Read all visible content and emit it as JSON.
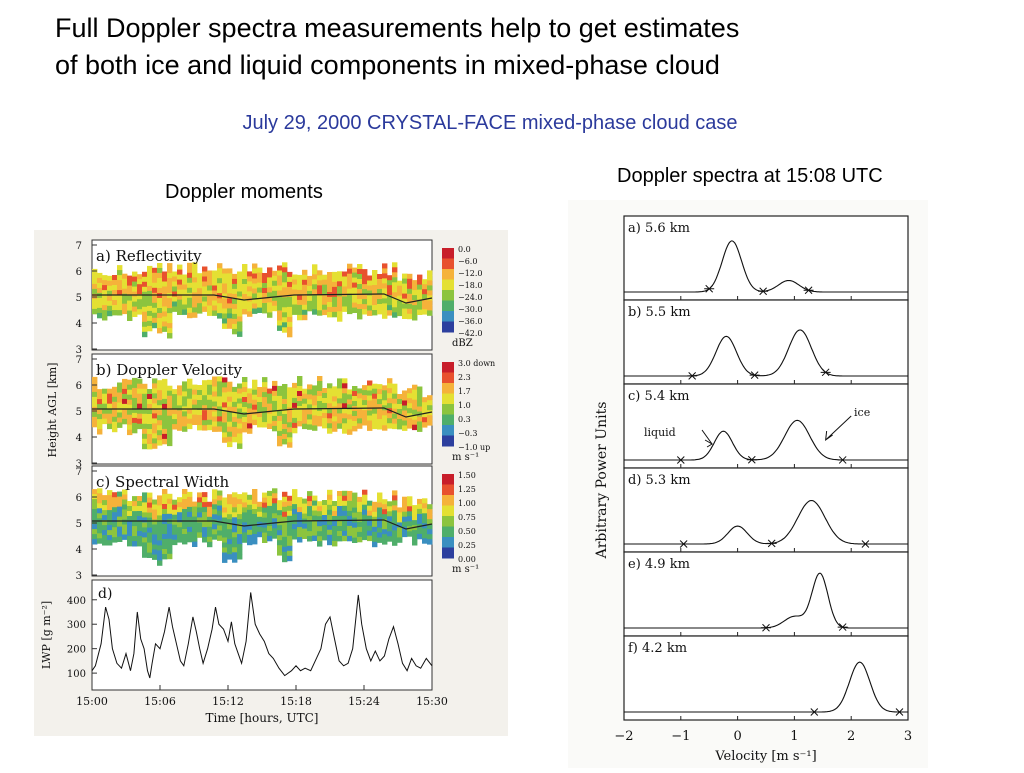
{
  "slide": {
    "title_line1": "Full Doppler spectra measurements help to get estimates",
    "title_line2": "of both ice and liquid components in mixed-phase cloud",
    "subtitle": "July 29, 2000 CRYSTAL-FACE mixed-phase cloud case",
    "left_caption": "Doppler moments",
    "right_caption": "Doppler spectra at 15:08 UTC"
  },
  "colors": {
    "subtitle": "#2b3a9c",
    "cloud_palette": [
      "#2c3f9e",
      "#3a8fc0",
      "#4fae6a",
      "#8cc43e",
      "#e4e033",
      "#f5b23a",
      "#e8512e",
      "#c81e2a"
    ]
  },
  "moments": {
    "panels": [
      {
        "label": "a) Reflectivity",
        "ticks": [
          "0.0",
          "−6.0",
          "−12.0",
          "−18.0",
          "−24.0",
          "−30.0",
          "−36.0",
          "−42.0"
        ],
        "unit": "dBZ"
      },
      {
        "label": "b) Doppler Velocity",
        "ticks": [
          "3.0 down",
          "2.3",
          "1.7",
          "1.0",
          "0.3",
          "−0.3",
          "−1.0 up"
        ],
        "unit": "m s⁻¹"
      },
      {
        "label": "c) Spectral Width",
        "ticks": [
          "1.50",
          "1.25",
          "1.00",
          "0.75",
          "0.50",
          "0.25",
          "0.00"
        ],
        "unit": "m s⁻¹"
      }
    ],
    "height_ticks": [
      "7",
      "6",
      "5",
      "4",
      "3"
    ],
    "height_axis_label": "Height AGL [km]",
    "lwp": {
      "label": "d)",
      "ylabel": "LWP [g m⁻²]",
      "yticks": [
        "400",
        "300",
        "200",
        "100"
      ],
      "xticks": [
        "15:00",
        "15:06",
        "15:12",
        "15:18",
        "15:24",
        "15:30"
      ],
      "xlabel": "Time [hours, UTC]",
      "series": [
        [
          0,
          110
        ],
        [
          0.3,
          130
        ],
        [
          0.8,
          220
        ],
        [
          1.2,
          370
        ],
        [
          1.5,
          320
        ],
        [
          1.8,
          200
        ],
        [
          2.2,
          140
        ],
        [
          2.6,
          120
        ],
        [
          3.0,
          180
        ],
        [
          3.4,
          110
        ],
        [
          3.7,
          180
        ],
        [
          4.0,
          350
        ],
        [
          4.3,
          240
        ],
        [
          4.6,
          200
        ],
        [
          4.9,
          110
        ],
        [
          5.1,
          80
        ],
        [
          5.3,
          140
        ],
        [
          5.6,
          220
        ],
        [
          6.0,
          200
        ],
        [
          6.4,
          270
        ],
        [
          6.8,
          370
        ],
        [
          7.1,
          290
        ],
        [
          7.5,
          210
        ],
        [
          7.8,
          150
        ],
        [
          8.1,
          130
        ],
        [
          8.5,
          220
        ],
        [
          8.9,
          330
        ],
        [
          9.2,
          270
        ],
        [
          9.5,
          200
        ],
        [
          9.8,
          140
        ],
        [
          10.2,
          200
        ],
        [
          10.6,
          280
        ],
        [
          10.9,
          370
        ],
        [
          11.2,
          300
        ],
        [
          11.6,
          280
        ],
        [
          12.0,
          230
        ],
        [
          12.3,
          310
        ],
        [
          12.6,
          220
        ],
        [
          12.9,
          180
        ],
        [
          13.2,
          140
        ],
        [
          13.6,
          230
        ],
        [
          14.0,
          430
        ],
        [
          14.4,
          300
        ],
        [
          14.8,
          260
        ],
        [
          15.2,
          230
        ],
        [
          15.6,
          180
        ],
        [
          16.0,
          160
        ],
        [
          16.5,
          120
        ],
        [
          17.0,
          90
        ],
        [
          17.6,
          110
        ],
        [
          18.0,
          130
        ],
        [
          18.4,
          110
        ],
        [
          18.8,
          120
        ],
        [
          19.3,
          110
        ],
        [
          19.8,
          160
        ],
        [
          20.2,
          200
        ],
        [
          20.6,
          300
        ],
        [
          21.0,
          330
        ],
        [
          21.4,
          240
        ],
        [
          21.8,
          150
        ],
        [
          22.2,
          130
        ],
        [
          22.6,
          140
        ],
        [
          23.0,
          200
        ],
        [
          23.5,
          420
        ],
        [
          23.8,
          300
        ],
        [
          24.2,
          200
        ],
        [
          24.6,
          150
        ],
        [
          25.0,
          190
        ],
        [
          25.4,
          150
        ],
        [
          25.8,
          170
        ],
        [
          26.2,
          240
        ],
        [
          26.6,
          290
        ],
        [
          27.0,
          220
        ],
        [
          27.4,
          140
        ],
        [
          27.8,
          110
        ],
        [
          28.2,
          160
        ],
        [
          28.6,
          130
        ],
        [
          29.0,
          120
        ],
        [
          29.5,
          160
        ],
        [
          30.0,
          130
        ]
      ]
    }
  },
  "spectra": {
    "ylabel": "Arbitrary Power Units",
    "xlabel": "Velocity [m s⁻¹]",
    "xticks": [
      "−2",
      "−1",
      "0",
      "1",
      "2",
      "3"
    ],
    "annotations": {
      "liquid": "liquid",
      "ice": "ice"
    },
    "panels": [
      {
        "label": "a) 5.6 km",
        "peaks": [
          [
            -0.1,
            0.8,
            0.17
          ],
          [
            0.9,
            0.18,
            0.18
          ]
        ],
        "stars": [
          -0.5,
          0.45,
          1.25
        ]
      },
      {
        "label": "b) 5.5 km",
        "peaks": [
          [
            -0.2,
            0.62,
            0.18
          ],
          [
            1.1,
            0.72,
            0.2
          ]
        ],
        "stars": [
          -0.8,
          0.3,
          1.55
        ]
      },
      {
        "label": "c) 5.4 km",
        "peaks": [
          [
            -0.25,
            0.45,
            0.16
          ],
          [
            1.05,
            0.62,
            0.22
          ]
        ],
        "stars": [
          -1.0,
          0.25,
          1.85
        ]
      },
      {
        "label": "d) 5.3 km",
        "peaks": [
          [
            0.0,
            0.28,
            0.17
          ],
          [
            1.3,
            0.68,
            0.24
          ]
        ],
        "stars": [
          -0.95,
          0.6,
          2.25
        ]
      },
      {
        "label": "e) 4.9 km",
        "peaks": [
          [
            1.0,
            0.18,
            0.18
          ],
          [
            1.45,
            0.85,
            0.14
          ]
        ],
        "stars": [
          0.5,
          1.85
        ]
      },
      {
        "label": "f) 4.2 km",
        "peaks": [
          [
            2.15,
            0.78,
            0.18
          ]
        ],
        "stars": [
          1.35,
          2.85
        ]
      }
    ]
  }
}
